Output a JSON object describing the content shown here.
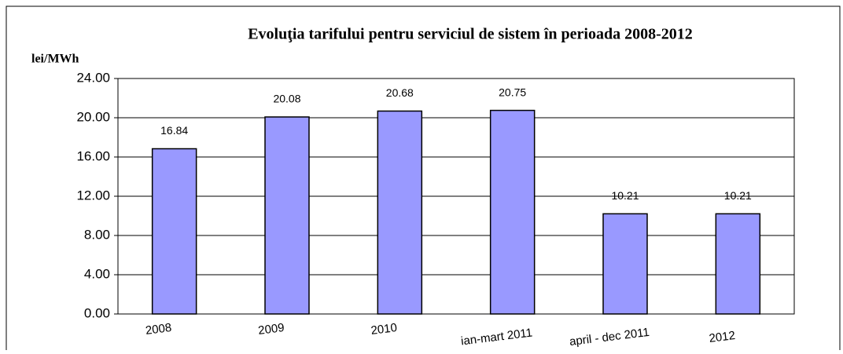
{
  "chart_data": {
    "type": "bar",
    "title": "Evoluţia tarifului pentru serviciul de sistem în perioada 2008-2012",
    "y_label": "lei/MWh",
    "categories": [
      "2008",
      "2009",
      "2010",
      "ian-mart 2011",
      "april - dec 2011",
      "2012"
    ],
    "values": [
      16.84,
      20.08,
      20.68,
      20.75,
      10.21,
      10.21
    ],
    "color": "#9999ff",
    "ylim": [
      0,
      24
    ],
    "yticks": [
      {
        "value": 0,
        "label": "0.00"
      },
      {
        "value": 4,
        "label": "4.00"
      },
      {
        "value": 8,
        "label": "8.00"
      },
      {
        "value": 12,
        "label": "12.00"
      },
      {
        "value": 16,
        "label": "16.00"
      },
      {
        "value": 20,
        "label": "20.00"
      },
      {
        "value": 24,
        "label": "24.00"
      }
    ],
    "grid": true
  }
}
